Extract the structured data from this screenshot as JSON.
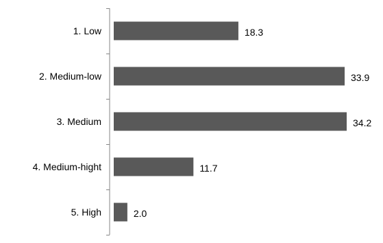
{
  "chart_data": {
    "type": "bar",
    "orientation": "horizontal",
    "categories": [
      "1. Low",
      "2. Medium-low",
      "3. Medium",
      "4. Medium-hight",
      "5. High"
    ],
    "values": [
      18.3,
      33.9,
      34.2,
      11.7,
      2.0
    ],
    "value_labels": [
      "18.3",
      "33.9",
      "34.2",
      "11.7",
      "2.0"
    ],
    "title": "",
    "xlabel": "",
    "ylabel": "",
    "xlim": [
      0,
      34.2
    ],
    "grid": false,
    "legend": "none",
    "bar_color": "#595959",
    "axis_color": "#868686"
  }
}
